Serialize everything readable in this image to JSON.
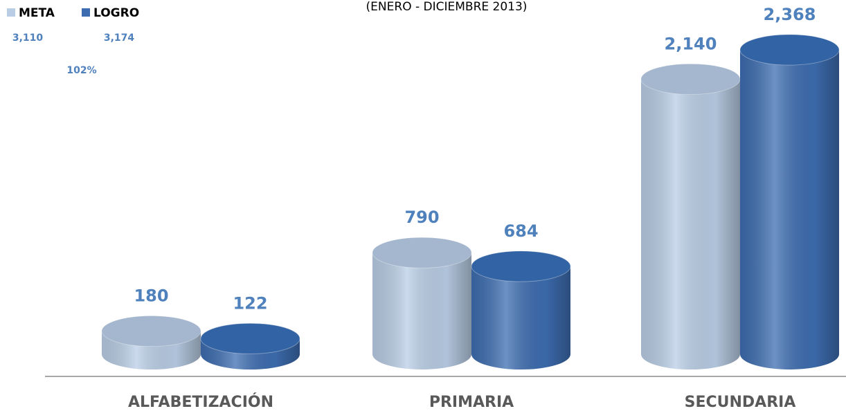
{
  "chart_data": {
    "type": "bar3d",
    "subtitle": "(ENERO - DICIEMBRE  2013)",
    "categories": [
      "ALFABETIZACIÓN",
      "PRIMARIA",
      "SECUNDARIA"
    ],
    "series": [
      {
        "name": "META",
        "color": "#b9cde5",
        "values": [
          180,
          790,
          2140
        ],
        "value_labels": [
          "180",
          "790",
          "2,140"
        ]
      },
      {
        "name": "LOGRO",
        "color": "#3d6db0",
        "values": [
          122,
          684,
          2368
        ],
        "value_labels": [
          "122",
          "684",
          "2,368"
        ]
      }
    ],
    "annotations": [
      "3,110",
      "3,174",
      "102%"
    ]
  }
}
